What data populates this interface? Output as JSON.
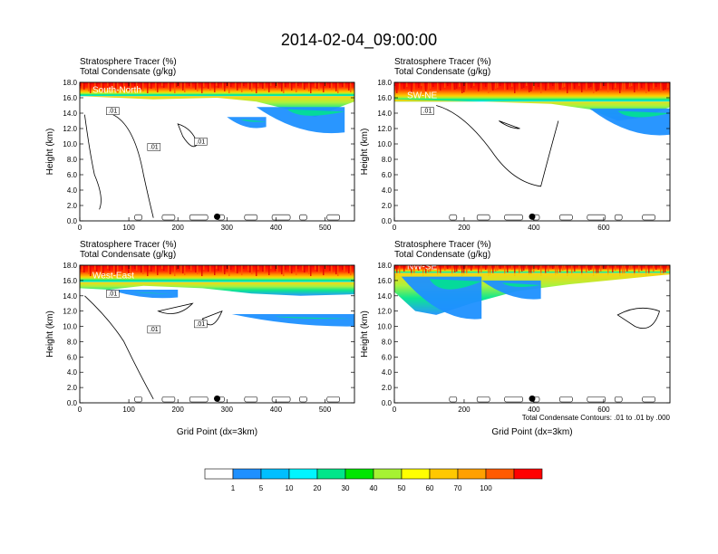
{
  "figure": {
    "title": "2014-02-04_09:00:00",
    "contour_note": "Total Condensate Contours: .01 to .01 by .000"
  },
  "colorbar": {
    "colors": [
      "#ffffff",
      "#1e90ff",
      "#00bfff",
      "#00f5ff",
      "#00e68a",
      "#00e600",
      "#a6f233",
      "#ffff00",
      "#ffc800",
      "#ffa000",
      "#ff5a00",
      "#ff0000"
    ],
    "labels": [
      "1",
      "5",
      "10",
      "20",
      "30",
      "40",
      "50",
      "60",
      "70",
      "100"
    ]
  },
  "chart_data": [
    {
      "type": "heatmap",
      "name": "South-North",
      "subtitle_1": "Stratosphere Tracer   (%)",
      "subtitle_2": "Total Condensate   (g/kg)",
      "ylabel": "Height (km)",
      "xlabel": "",
      "xlim": [
        0,
        560
      ],
      "ylim": [
        0,
        18
      ],
      "xticks": [
        "0",
        "100",
        "200",
        "300",
        "400",
        "500"
      ],
      "yticks": [
        "0.0",
        "2.0",
        "4.0",
        "6.0",
        "8.0",
        "10.0",
        "12.0",
        "14.0",
        "16.0",
        "18.0"
      ],
      "marker_x": 280,
      "contour_labels": [
        ".01",
        ".01",
        ".01"
      ],
      "stratosphere_base_km": 16.2,
      "tropopause_fold": [
        [
          0,
          16.2
        ],
        [
          150,
          15.8
        ],
        [
          280,
          16.0
        ],
        [
          360,
          15.5
        ],
        [
          430,
          14.4
        ],
        [
          480,
          13.5
        ],
        [
          530,
          14.8
        ],
        [
          560,
          15.5
        ]
      ]
    },
    {
      "type": "heatmap",
      "name": "SW-NE",
      "subtitle_1": "Stratosphere Tracer   (%)",
      "subtitle_2": "Total Condensate   (g/kg)",
      "ylabel": "Height (km)",
      "xlabel": "",
      "xlim": [
        0,
        790
      ],
      "ylim": [
        0,
        18
      ],
      "xticks": [
        "0",
        "200",
        "400",
        "600"
      ],
      "yticks": [
        "0.0",
        "2.0",
        "4.0",
        "6.0",
        "8.0",
        "10.0",
        "12.0",
        "14.0",
        "16.0",
        "18.0"
      ],
      "marker_x": 395,
      "contour_labels": [
        ".01"
      ],
      "stratosphere_base_km": 15.5,
      "tropopause_fold": [
        [
          0,
          15.8
        ],
        [
          250,
          15.5
        ],
        [
          450,
          15.2
        ],
        [
          560,
          14.5
        ],
        [
          640,
          13.0
        ],
        [
          720,
          13.5
        ],
        [
          790,
          14.8
        ]
      ]
    },
    {
      "type": "heatmap",
      "name": "West-East",
      "subtitle_1": "Stratosphere Tracer   (%)",
      "subtitle_2": "Total Condensate   (g/kg)",
      "ylabel": "Height (km)",
      "xlabel": "Grid Point (dx=3km)",
      "xlim": [
        0,
        560
      ],
      "ylim": [
        0,
        18
      ],
      "xticks": [
        "0",
        "100",
        "200",
        "300",
        "400",
        "500"
      ],
      "yticks": [
        "0.0",
        "2.0",
        "4.0",
        "6.0",
        "8.0",
        "10.0",
        "12.0",
        "14.0",
        "16.0",
        "18.0"
      ],
      "marker_x": 280,
      "contour_labels": [
        ".01",
        ".01",
        ".01"
      ],
      "stratosphere_base_km": 15.8,
      "tropopause_fold": [
        [
          0,
          15.0
        ],
        [
          60,
          14.8
        ],
        [
          130,
          15.3
        ],
        [
          250,
          15.0
        ],
        [
          350,
          14.3
        ],
        [
          450,
          14.0
        ],
        [
          560,
          14.2
        ]
      ]
    },
    {
      "type": "heatmap",
      "name": "NW-SE",
      "subtitle_1": "Stratosphere Tracer   (%)",
      "subtitle_2": "Total Condensate   (g/kg)",
      "ylabel": "Height (km)",
      "xlabel": "Grid Point (dx=3km)",
      "xlim": [
        0,
        790
      ],
      "ylim": [
        0,
        18
      ],
      "xticks": [
        "0",
        "200",
        "400",
        "600"
      ],
      "yticks": [
        "0.0",
        "2.0",
        "4.0",
        "6.0",
        "8.0",
        "10.0",
        "12.0",
        "14.0",
        "16.0",
        "18.0"
      ],
      "marker_x": 395,
      "contour_labels": [],
      "stratosphere_base_km": 17.0,
      "tropopause_fold": [
        [
          0,
          14.5
        ],
        [
          60,
          12.0
        ],
        [
          120,
          11.5
        ],
        [
          220,
          13.0
        ],
        [
          350,
          14.6
        ],
        [
          500,
          15.5
        ],
        [
          790,
          16.8
        ]
      ]
    }
  ]
}
